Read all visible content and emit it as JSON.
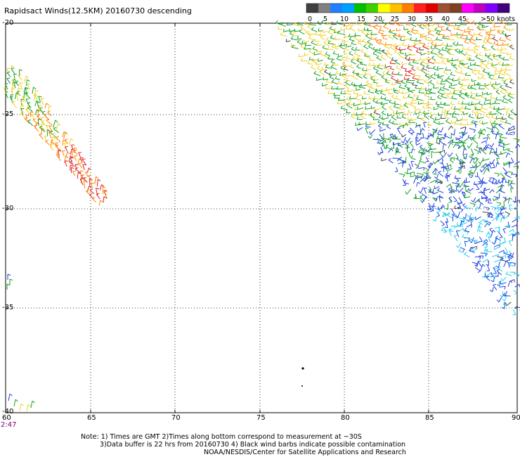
{
  "title": "Rapidsact Winds(12.5KM) 20160730 descending",
  "legend": {
    "colors": [
      "#404040",
      "#808080",
      "#2080ff",
      "#00a0ff",
      "#00c000",
      "#40d000",
      "#ffff00",
      "#ffc000",
      "#ff8000",
      "#ff2020",
      "#e00000",
      "#a05030",
      "#804020",
      "#ff00ff",
      "#c000c0",
      "#8000ff",
      "#400080"
    ],
    "labels": [
      "0",
      "5",
      "10",
      "15",
      "20",
      "25",
      "30",
      "35",
      "40",
      "45",
      ">50 knots"
    ]
  },
  "axes": {
    "x_ticks": [
      "60",
      "65",
      "70",
      "75",
      "80",
      "85",
      "90"
    ],
    "y_ticks": [
      "-20",
      "-25",
      "-30",
      "-35",
      "-40"
    ]
  },
  "time_label": "2:47",
  "notes": {
    "line1": "Note: 1) Times are GMT 2)Times along bottom correspond to measurement at ~30S",
    "line2": "3)Data buffer is 22 hrs from 20160730 4) Black wind barbs indicate possible contamination",
    "line3": "NOAA/NESDIS/Center for Satellite Applications and Research"
  },
  "wind_colors": {
    "calm": "#404040",
    "light": "#20d0f0",
    "mid": "#2040e0",
    "green": "#10a020",
    "yellow": "#f0d020",
    "orange": "#ff8000",
    "red": "#e02020"
  }
}
